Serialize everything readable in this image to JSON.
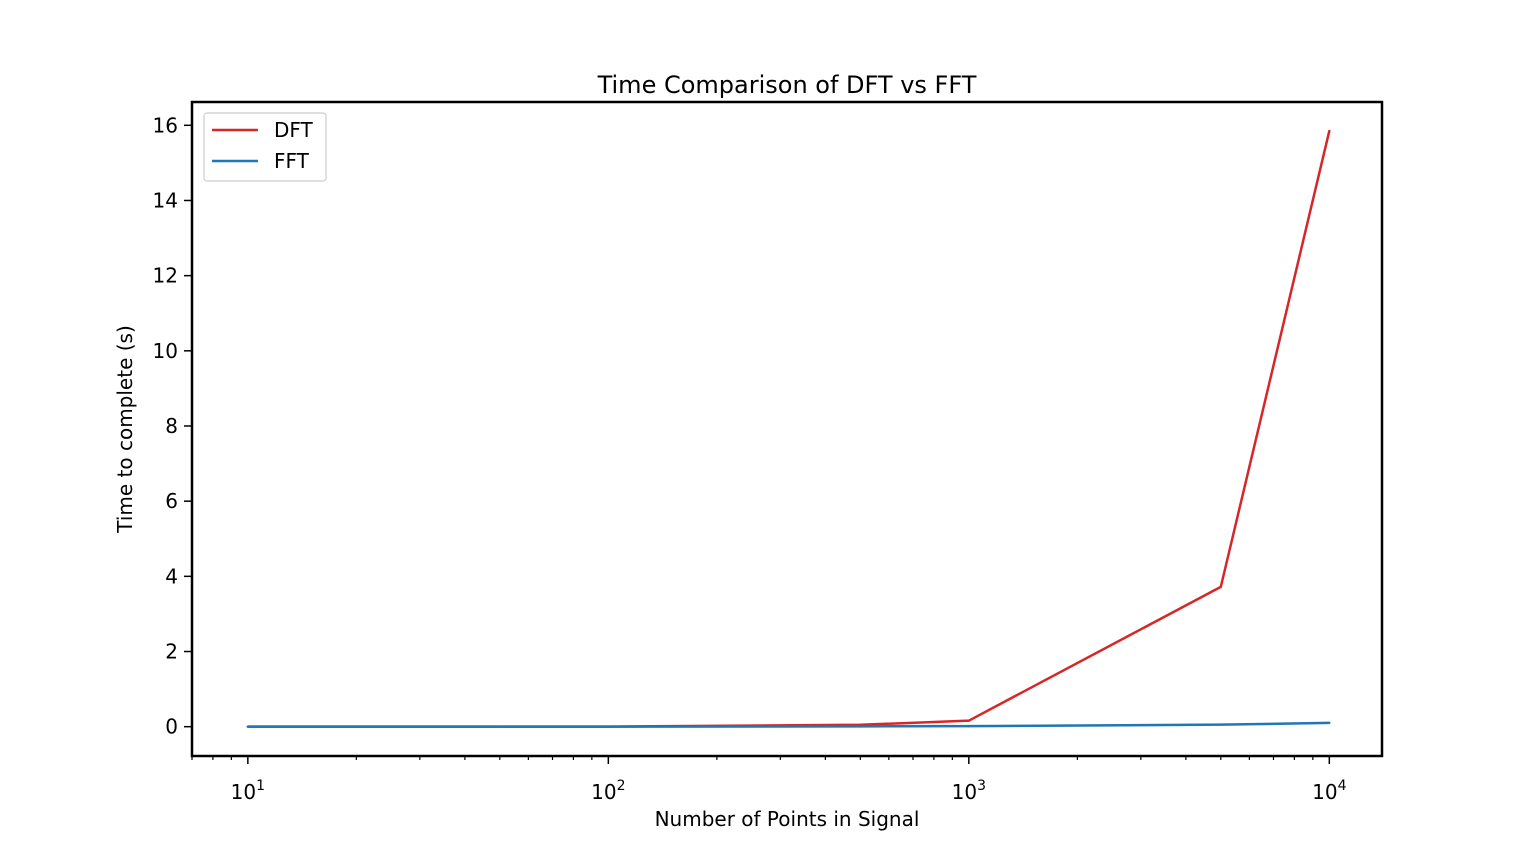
{
  "chart_data": {
    "type": "line",
    "title": "Time Comparison of DFT vs FFT",
    "xlabel": "Number of Points in Signal",
    "ylabel": "Time to complete (s)",
    "x_scale": "log",
    "x_ticks": [
      {
        "base": "10",
        "exp": "1",
        "value": 10
      },
      {
        "base": "10",
        "exp": "2",
        "value": 100
      },
      {
        "base": "10",
        "exp": "3",
        "value": 1000
      },
      {
        "base": "10",
        "exp": "4",
        "value": 10000
      }
    ],
    "y_ticks": [
      "0",
      "2",
      "4",
      "6",
      "8",
      "10",
      "12",
      "14",
      "16"
    ],
    "xlim": [
      7,
      14000
    ],
    "ylim": [
      -0.78,
      16.62
    ],
    "grid": false,
    "legend_position": "upper-left",
    "series": [
      {
        "name": "DFT",
        "color": "#d62728",
        "x": [
          10,
          50,
          100,
          500,
          1000,
          5000,
          10000
        ],
        "y": [
          0.0,
          0.001,
          0.003,
          0.05,
          0.16,
          3.72,
          15.85
        ]
      },
      {
        "name": "FFT",
        "color": "#1f77b4",
        "x": [
          10,
          50,
          100,
          500,
          1000,
          5000,
          10000
        ],
        "y": [
          0.0,
          0.0,
          0.001,
          0.008,
          0.015,
          0.055,
          0.1
        ]
      }
    ]
  }
}
